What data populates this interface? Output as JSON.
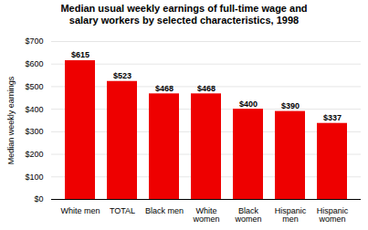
{
  "chart_data": {
    "type": "bar",
    "title": "Median usual weekly earnings of full-time wage and\nsalary workers by selected characteristics, 1998",
    "categories": [
      "White men",
      "TOTAL",
      "Black men",
      "White\nwomen",
      "Black\nwomen",
      "Hispanic\nmen",
      "Hispanic\nwomen"
    ],
    "values": [
      615,
      523,
      468,
      468,
      400,
      390,
      337
    ],
    "value_labels": [
      "$615",
      "$523",
      "$468",
      "$468",
      "$400",
      "$390",
      "$337"
    ],
    "data_labels": true,
    "color": "#ee0000",
    "ylabel": "Median weekly earnings",
    "ylim": [
      0,
      700
    ],
    "yticks": [
      {
        "value": 0,
        "label": "$0"
      },
      {
        "value": 100,
        "label": "$100"
      },
      {
        "value": 200,
        "label": "$200"
      },
      {
        "value": 300,
        "label": "$300"
      },
      {
        "value": 400,
        "label": "$400"
      },
      {
        "value": 500,
        "label": "$500"
      },
      {
        "value": 600,
        "label": "$600"
      },
      {
        "value": 700,
        "label": "$700"
      }
    ],
    "grid": true
  }
}
